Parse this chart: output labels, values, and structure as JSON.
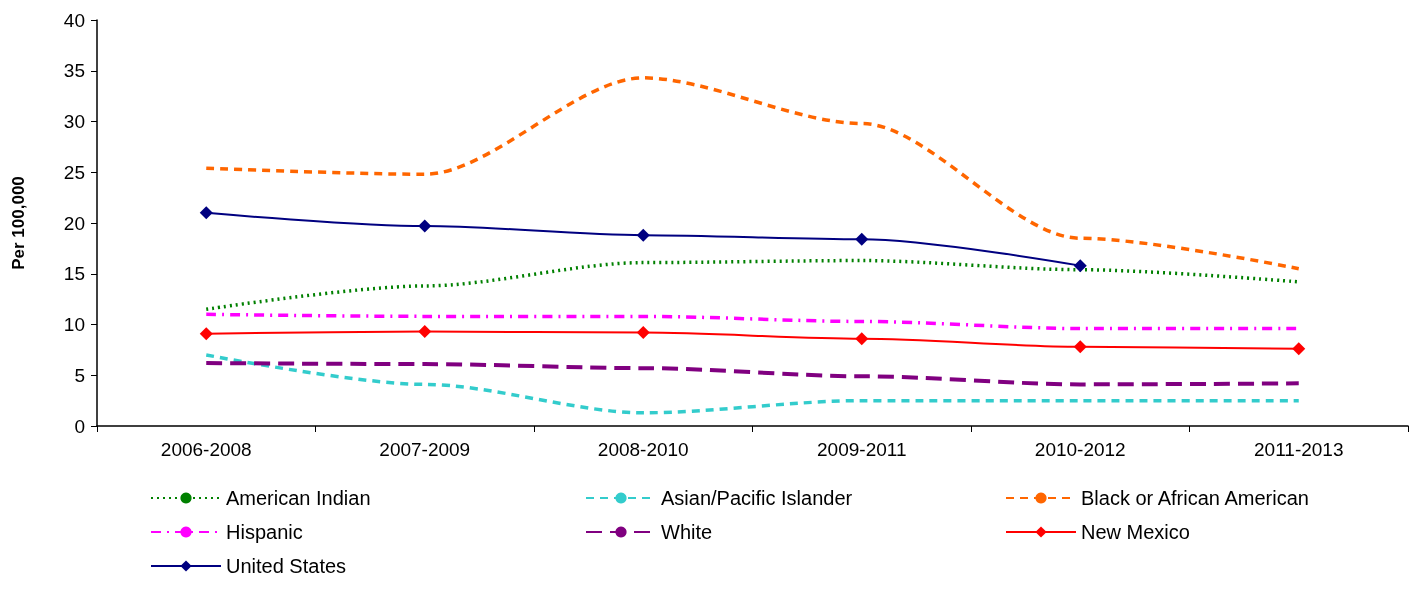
{
  "chart_data": {
    "type": "line",
    "ylabel": "Per 100,000",
    "categories": [
      "2006-2008",
      "2007-2009",
      "2008-2010",
      "2009-2011",
      "2010-2012",
      "2011-2013"
    ],
    "ylim": [
      0,
      40
    ],
    "yticks": [
      0,
      5,
      10,
      15,
      20,
      25,
      30,
      35,
      40
    ],
    "grid": false,
    "legend": "bottom",
    "series": [
      {
        "name": "American Indian",
        "color": "#008000",
        "line_style": "dotted",
        "marker": "none",
        "values": [
          11.5,
          13.8,
          16.1,
          16.3,
          15.4,
          14.2
        ]
      },
      {
        "name": "Asian/Pacific Islander",
        "color": "#33cccc",
        "line_style": "dashed",
        "marker": "none",
        "values": [
          7.0,
          4.1,
          1.3,
          2.5,
          2.5,
          2.5
        ]
      },
      {
        "name": "Black or African American",
        "color": "#ff6600",
        "line_style": "dashed",
        "marker": "none",
        "values": [
          25.4,
          24.8,
          34.3,
          29.8,
          18.5,
          15.5
        ]
      },
      {
        "name": "Hispanic",
        "color": "#ff00ff",
        "line_style": "dashdot",
        "marker": "none",
        "values": [
          11.0,
          10.8,
          10.8,
          10.3,
          9.6,
          9.6
        ]
      },
      {
        "name": "White",
        "color": "#800080",
        "line_style": "longdash",
        "marker": "none",
        "values": [
          6.2,
          6.1,
          5.7,
          4.9,
          4.1,
          4.2
        ]
      },
      {
        "name": "New Mexico",
        "color": "#ff0000",
        "line_style": "solid",
        "marker": "diamond",
        "values": [
          9.1,
          9.3,
          9.2,
          8.6,
          7.8,
          7.6
        ]
      },
      {
        "name": "United States",
        "color": "#000080",
        "line_style": "solid",
        "marker": "diamond",
        "values": [
          21.0,
          19.7,
          18.8,
          18.4,
          15.8,
          null
        ]
      }
    ]
  }
}
